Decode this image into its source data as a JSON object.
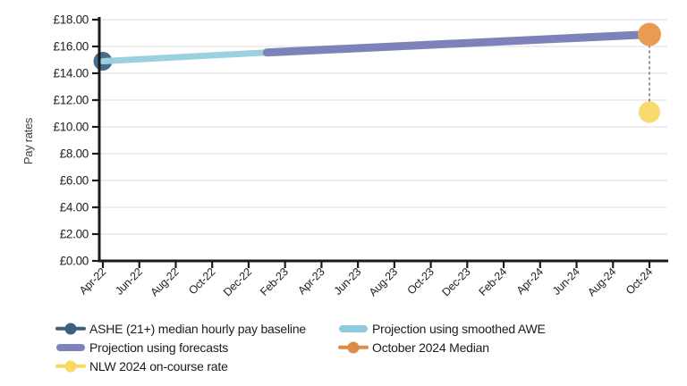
{
  "chart": {
    "y_axis_title": "Pay rates",
    "axis_color": "#1a1a1a",
    "tick_label_color": "#1f1f1f",
    "grid_color": "#e8e8e8",
    "background_color": "#ffffff"
  },
  "chart_data": {
    "type": "line",
    "title": "",
    "xlabel": "",
    "ylabel": "Pay rates",
    "ylim": [
      0,
      18
    ],
    "ytick_step": 2,
    "grid": "horizontal",
    "legend_position": "bottom",
    "y_tick_labels": [
      "£18.00",
      "£16.00",
      "£14.00",
      "£12.00",
      "£10.00",
      "£8.00",
      "£6.00",
      "£4.00",
      "£2.00",
      "£0.00"
    ],
    "x_tick_labels": [
      "Apr-22",
      "Jun-22",
      "Aug-22",
      "Oct-22",
      "Dec-22",
      "Feb-23",
      "Apr-23",
      "Jun-23",
      "Aug-23",
      "Oct-23",
      "Dec-23",
      "Feb-24",
      "Apr-24",
      "Jun-24",
      "Aug-24",
      "Oct-24"
    ],
    "x_months_per_tick": 2,
    "series": [
      {
        "name": "ASHE (21+) median hourly pay baseline",
        "type": "point",
        "color": "#466d8c",
        "radius": 10.5,
        "points": [
          {
            "x_label": "Apr-22",
            "month": 0,
            "value": 14.9
          }
        ]
      },
      {
        "name": "Projection using smoothed AWE",
        "type": "line",
        "color": "#9bd0df",
        "stroke_width": 7,
        "points": [
          {
            "x_label": "Apr-22",
            "month": 0,
            "value": 14.9
          },
          {
            "x_label": "Jan-23",
            "month": 9,
            "value": 15.55
          }
        ]
      },
      {
        "name": "Projection using forecasts",
        "type": "line",
        "color": "#7d83ba",
        "stroke_width": 9,
        "points": [
          {
            "x_label": "Jan-23",
            "month": 9,
            "value": 15.55
          },
          {
            "x_label": "Oct-24",
            "month": 30,
            "value": 16.9
          }
        ]
      },
      {
        "name": "October 2024 Median",
        "type": "point",
        "color": "#ea9b52",
        "radius": 13,
        "points": [
          {
            "x_label": "Oct-24",
            "month": 30,
            "value": 16.9
          }
        ]
      },
      {
        "name": "NLW 2024 on-course rate",
        "type": "point",
        "color": "#f8da6e",
        "radius": 12,
        "points": [
          {
            "x_label": "Oct-24",
            "month": 30,
            "value": 11.1
          }
        ]
      }
    ],
    "annotations": [
      {
        "type": "dashed_connector",
        "x_label": "Oct-24",
        "month": 30,
        "from_value": 16.9,
        "to_value": 11.1,
        "color": "#7a7a7a"
      }
    ]
  },
  "legend": {
    "items": [
      {
        "label": "ASHE (21+) median hourly pay baseline",
        "marker": "line-dot",
        "color": "#3f607c"
      },
      {
        "label": "Projection using smoothed AWE",
        "marker": "thick-line",
        "color": "#8ecbdc"
      },
      {
        "label": "Projection using forecasts",
        "marker": "thick-line",
        "color": "#7d83ba"
      },
      {
        "label": "October 2024 Median",
        "marker": "line-dot",
        "color": "#e08b45"
      },
      {
        "label": "NLW 2024 on-course rate",
        "marker": "line-dot",
        "color": "#f7d964"
      }
    ]
  }
}
